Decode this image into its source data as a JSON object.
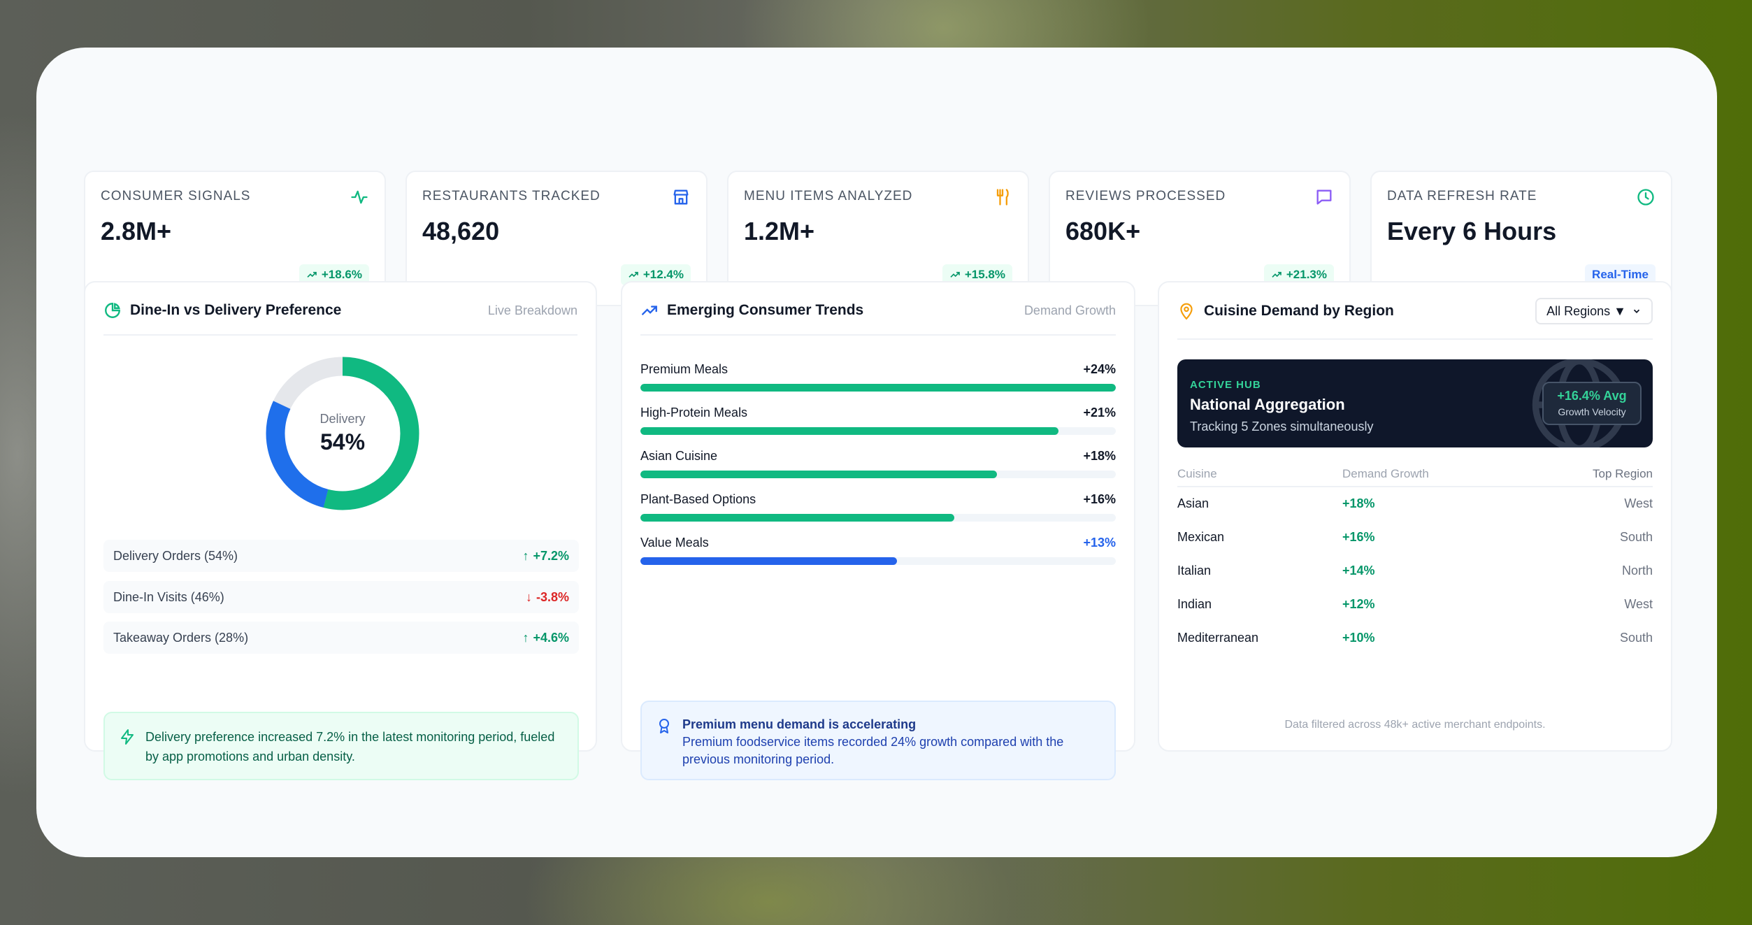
{
  "kpis": [
    {
      "label": "CONSUMER SIGNALS",
      "value": "2.8M+",
      "badge": "+18.6%",
      "icon": "pulse-icon",
      "icon_color": "#10b981"
    },
    {
      "label": "RESTAURANTS TRACKED",
      "value": "48,620",
      "badge": "+12.4%",
      "icon": "store-icon",
      "icon_color": "#2563eb"
    },
    {
      "label": "MENU ITEMS ANALYZED",
      "value": "1.2M+",
      "badge": "+15.8%",
      "icon": "utensils-icon",
      "icon_color": "#f59e0b"
    },
    {
      "label": "REVIEWS PROCESSED",
      "value": "680K+",
      "badge": "+21.3%",
      "icon": "message-icon",
      "icon_color": "#8b5cf6"
    },
    {
      "label": "DATA REFRESH RATE",
      "value": "Every 6 Hours",
      "badge": "Real-Time",
      "icon": "clock-icon",
      "icon_color": "#10b981"
    }
  ],
  "dine_panel": {
    "title": "Dine-In vs Delivery Preference",
    "meta": "Live Breakdown",
    "donut_label": "Delivery",
    "donut_value": "54%",
    "donut_fraction": 0.54,
    "rows": [
      {
        "label": "Delivery Orders (54%)",
        "delta": "+7.2%",
        "dir": "up"
      },
      {
        "label": "Dine-In Visits (46%)",
        "delta": "-3.8%",
        "dir": "down"
      },
      {
        "label": "Takeaway Orders (28%)",
        "delta": "+4.6%",
        "dir": "up"
      }
    ],
    "note": "Delivery preference increased 7.2% in the latest monitoring period, fueled by app promotions and urban density."
  },
  "trends_panel": {
    "title": "Emerging Consumer Trends",
    "meta": "Demand Growth",
    "items": [
      {
        "name": "Premium Meals",
        "value": "+24%",
        "fill": 1.0,
        "color": "#10b981"
      },
      {
        "name": "High-Protein Meals",
        "value": "+21%",
        "fill": 0.88,
        "color": "#10b981"
      },
      {
        "name": "Asian Cuisine",
        "value": "+18%",
        "fill": 0.75,
        "color": "#10b981"
      },
      {
        "name": "Plant-Based Options",
        "value": "+16%",
        "fill": 0.66,
        "color": "#10b981"
      },
      {
        "name": "Value Meals",
        "value": "+13%",
        "fill": 0.54,
        "color": "#2563eb"
      }
    ],
    "note_title": "Premium menu demand is accelerating",
    "note_body": "Premium foodservice items recorded 24% growth compared with the previous monitoring period."
  },
  "region_panel": {
    "title": "Cuisine Demand by Region",
    "select": "All Regions ▼",
    "hub_kicker": "ACTIVE HUB",
    "hub_title": "National Aggregation",
    "hub_sub": "Tracking 5 Zones simultaneously",
    "hub_badge_big": "+16.4% Avg",
    "hub_badge_small": "Growth Velocity",
    "columns": [
      "Cuisine",
      "Demand Growth",
      "Top Region"
    ],
    "rows": [
      [
        "Asian",
        "+18%",
        "West"
      ],
      [
        "Mexican",
        "+16%",
        "South"
      ],
      [
        "Italian",
        "+14%",
        "North"
      ],
      [
        "Indian",
        "+12%",
        "West"
      ],
      [
        "Mediterranean",
        "+10%",
        "South"
      ]
    ],
    "footer": "Data filtered across 48k+ active merchant endpoints."
  }
}
